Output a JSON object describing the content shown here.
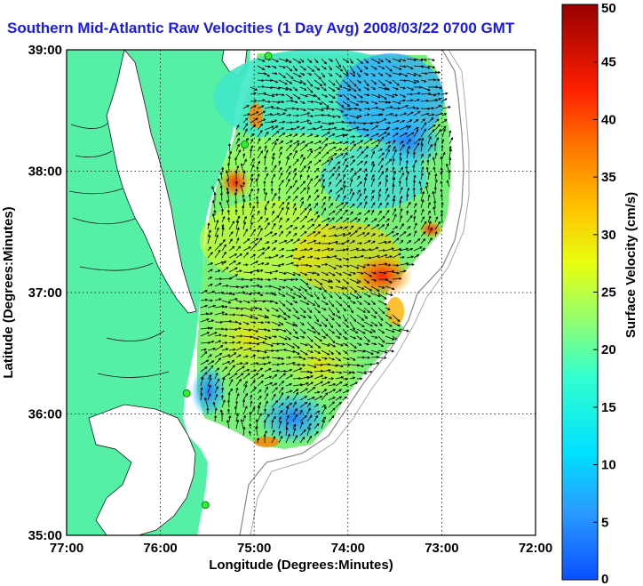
{
  "title": "Southern Mid-Atlantic Raw Velocities (1 Day Avg) 2008/03/22 0700 GMT",
  "map": {
    "xlabel": "Longitude (Degrees:Minutes)",
    "ylabel": "Latitude (Degrees:Minutes)",
    "x_ticks": [
      "77:00",
      "76:00",
      "75:00",
      "74:00",
      "73:00",
      "72:00"
    ],
    "y_ticks": [
      "39:00",
      "38:00",
      "37:00",
      "36:00",
      "35:00"
    ],
    "xlim": [
      -77,
      -72
    ],
    "ylim": [
      35,
      39
    ],
    "grid": "dotted",
    "colors": {
      "land": "#55f0a5",
      "water": "#ffffff",
      "frame": "#000000",
      "arrows": "#000000"
    }
  },
  "colorbar": {
    "label": "Surface Velocity (cm/s)",
    "ticks": [
      "0",
      "5",
      "10",
      "15",
      "20",
      "25",
      "30",
      "35",
      "40",
      "45",
      "50"
    ],
    "range": [
      0,
      50
    ],
    "colormap": "jet"
  },
  "stations": [
    {
      "lon": -74.85,
      "lat": 38.95
    },
    {
      "lon": -75.1,
      "lat": 38.22
    },
    {
      "lon": -75.72,
      "lat": 36.17
    },
    {
      "lon": -75.52,
      "lat": 35.25
    }
  ]
}
